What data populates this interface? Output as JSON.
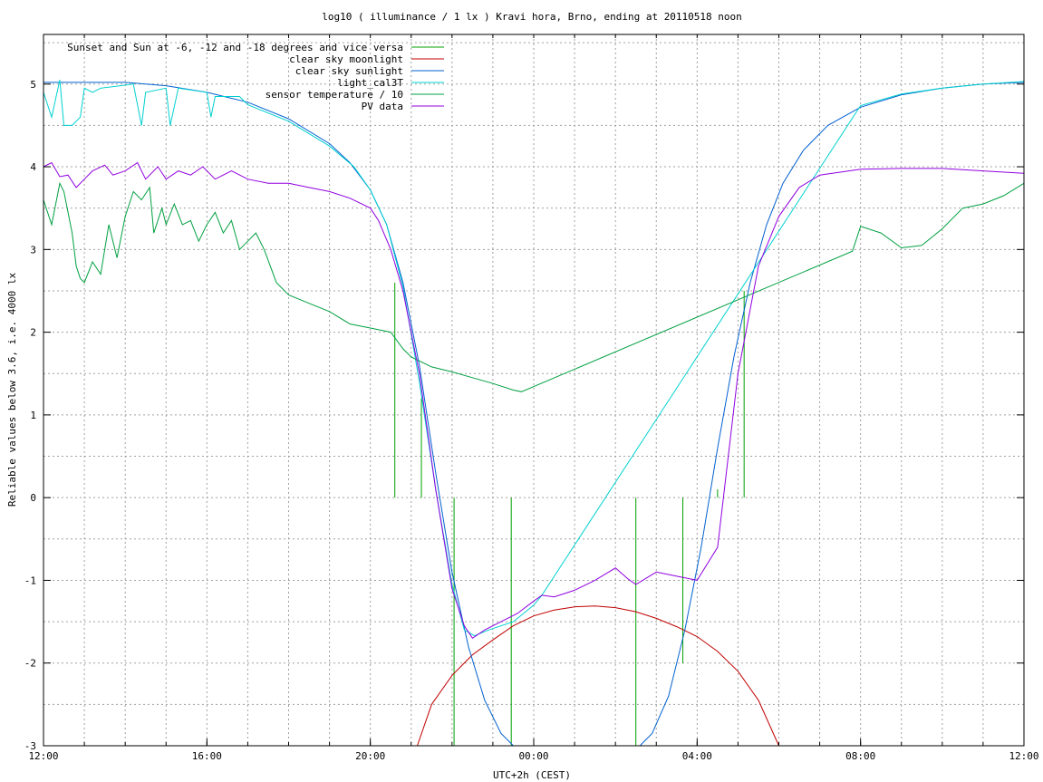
{
  "chart_data": {
    "type": "line",
    "title": "log10 ( illuminance / 1 lx ) Kravi hora, Brno, ending at 20110518 noon",
    "xlabel": "UTC+2h (CEST)",
    "ylabel": "Reliable values below 3.6, i.e. 4000 lx",
    "x_unit": "hours after 12:00 of previous day",
    "xlim": [
      0,
      24
    ],
    "ylim": [
      -3,
      5.6
    ],
    "x_ticks": [
      {
        "v": 0,
        "label": "12:00"
      },
      {
        "v": 4,
        "label": "16:00"
      },
      {
        "v": 8,
        "label": "20:00"
      },
      {
        "v": 12,
        "label": "00:00"
      },
      {
        "v": 16,
        "label": "04:00"
      },
      {
        "v": 20,
        "label": "08:00"
      },
      {
        "v": 24,
        "label": "12:00"
      }
    ],
    "y_ticks": [
      {
        "v": -3,
        "label": "-3"
      },
      {
        "v": -2,
        "label": "-2"
      },
      {
        "v": -1,
        "label": "-1"
      },
      {
        "v": 0,
        "label": "0"
      },
      {
        "v": 1,
        "label": "1"
      },
      {
        "v": 2,
        "label": "2"
      },
      {
        "v": 3,
        "label": "3"
      },
      {
        "v": 4,
        "label": "4"
      },
      {
        "v": 5,
        "label": "5"
      }
    ],
    "grid": true,
    "legend_position": "top-left",
    "series": [
      {
        "name": "Sunset and Sun at -6, -12 and -18 degrees and vice versa",
        "color": "#00a000",
        "style": "impulses",
        "points": [
          [
            8.6,
            2.6
          ],
          [
            9.25,
            1.2
          ],
          [
            10.05,
            -3
          ],
          [
            11.45,
            -3
          ],
          [
            14.5,
            -3
          ],
          [
            15.65,
            -2
          ],
          [
            16.5,
            0.1
          ],
          [
            17.15,
            2.5
          ]
        ]
      },
      {
        "name": "clear sky moonlight",
        "color": "#c00000",
        "values": [
          [
            9.15,
            -3
          ],
          [
            9.5,
            -2.5
          ],
          [
            10.0,
            -2.15
          ],
          [
            10.5,
            -1.9
          ],
          [
            11.0,
            -1.72
          ],
          [
            11.5,
            -1.55
          ],
          [
            12.0,
            -1.43
          ],
          [
            12.5,
            -1.36
          ],
          [
            13.0,
            -1.32
          ],
          [
            13.5,
            -1.31
          ],
          [
            14.0,
            -1.33
          ],
          [
            14.5,
            -1.38
          ],
          [
            15.0,
            -1.46
          ],
          [
            15.5,
            -1.56
          ],
          [
            16.0,
            -1.68
          ],
          [
            16.5,
            -1.86
          ],
          [
            17.0,
            -2.1
          ],
          [
            17.5,
            -2.45
          ],
          [
            18.0,
            -3
          ]
        ]
      },
      {
        "name": "clear sky sunlight",
        "color": "#0060d0",
        "values": [
          [
            0,
            5.02
          ],
          [
            1,
            5.02
          ],
          [
            2,
            5.02
          ],
          [
            3,
            4.98
          ],
          [
            4,
            4.9
          ],
          [
            5,
            4.78
          ],
          [
            6,
            4.58
          ],
          [
            7,
            4.28
          ],
          [
            7.5,
            4.05
          ],
          [
            8,
            3.72
          ],
          [
            8.4,
            3.3
          ],
          [
            8.8,
            2.6
          ],
          [
            9.2,
            1.6
          ],
          [
            9.6,
            0.3
          ],
          [
            10.0,
            -0.9
          ],
          [
            10.4,
            -1.8
          ],
          [
            10.8,
            -2.45
          ],
          [
            11.2,
            -2.85
          ],
          [
            11.5,
            -3.0
          ],
          [
            14.6,
            -3.0
          ],
          [
            14.9,
            -2.85
          ],
          [
            15.3,
            -2.4
          ],
          [
            15.7,
            -1.6
          ],
          [
            16.1,
            -0.6
          ],
          [
            16.5,
            0.6
          ],
          [
            16.9,
            1.7
          ],
          [
            17.3,
            2.6
          ],
          [
            17.7,
            3.3
          ],
          [
            18.1,
            3.8
          ],
          [
            18.6,
            4.2
          ],
          [
            19.2,
            4.5
          ],
          [
            20.0,
            4.72
          ],
          [
            21.0,
            4.87
          ],
          [
            22.0,
            4.95
          ],
          [
            23.0,
            5.0
          ],
          [
            24.0,
            5.02
          ]
        ]
      },
      {
        "name": "light_cal3T",
        "color": "#00d0d0",
        "values": [
          [
            0,
            4.9
          ],
          [
            0.2,
            4.6
          ],
          [
            0.4,
            5.05
          ],
          [
            0.5,
            4.5
          ],
          [
            0.7,
            4.5
          ],
          [
            0.9,
            4.6
          ],
          [
            1.0,
            4.95
          ],
          [
            1.2,
            4.9
          ],
          [
            1.4,
            4.95
          ],
          [
            2.2,
            5.0
          ],
          [
            2.4,
            4.5
          ],
          [
            2.5,
            4.9
          ],
          [
            3.0,
            4.95
          ],
          [
            3.1,
            4.5
          ],
          [
            3.3,
            4.95
          ],
          [
            4.0,
            4.9
          ],
          [
            4.1,
            4.6
          ],
          [
            4.2,
            4.85
          ],
          [
            4.8,
            4.85
          ],
          [
            5.0,
            4.75
          ],
          [
            6.0,
            4.55
          ],
          [
            7.0,
            4.25
          ],
          [
            7.6,
            4.0
          ],
          [
            8.0,
            3.72
          ],
          [
            8.4,
            3.3
          ],
          [
            8.8,
            2.55
          ],
          [
            9.2,
            1.4
          ],
          [
            9.6,
            0.1
          ],
          [
            10.0,
            -1.05
          ],
          [
            10.3,
            -1.6
          ],
          [
            10.55,
            -1.67
          ],
          [
            10.9,
            -1.6
          ],
          [
            11.5,
            -1.5
          ],
          [
            12.0,
            -1.3
          ],
          [
            12.2,
            -1.18
          ],
          [
            20.0,
            4.74
          ],
          [
            21.0,
            4.88
          ],
          [
            22.0,
            4.95
          ],
          [
            23.0,
            5.0
          ],
          [
            24.0,
            5.03
          ]
        ]
      },
      {
        "name": "sensor temperature / 10",
        "color": "#00a040",
        "values": [
          [
            0,
            3.6
          ],
          [
            0.2,
            3.3
          ],
          [
            0.4,
            3.8
          ],
          [
            0.5,
            3.7
          ],
          [
            0.7,
            3.2
          ],
          [
            0.8,
            2.8
          ],
          [
            0.9,
            2.65
          ],
          [
            1.0,
            2.6
          ],
          [
            1.2,
            2.85
          ],
          [
            1.4,
            2.7
          ],
          [
            1.6,
            3.3
          ],
          [
            1.8,
            2.9
          ],
          [
            2.0,
            3.4
          ],
          [
            2.2,
            3.7
          ],
          [
            2.4,
            3.6
          ],
          [
            2.6,
            3.75
          ],
          [
            2.7,
            3.2
          ],
          [
            2.9,
            3.5
          ],
          [
            3.0,
            3.3
          ],
          [
            3.2,
            3.55
          ],
          [
            3.4,
            3.3
          ],
          [
            3.6,
            3.35
          ],
          [
            3.8,
            3.1
          ],
          [
            4.0,
            3.3
          ],
          [
            4.2,
            3.45
          ],
          [
            4.4,
            3.2
          ],
          [
            4.6,
            3.35
          ],
          [
            4.8,
            3.0
          ],
          [
            5.0,
            3.1
          ],
          [
            5.2,
            3.2
          ],
          [
            5.4,
            3.0
          ],
          [
            5.7,
            2.6
          ],
          [
            6.0,
            2.45
          ],
          [
            6.5,
            2.35
          ],
          [
            7.0,
            2.25
          ],
          [
            7.5,
            2.1
          ],
          [
            8.0,
            2.05
          ],
          [
            8.5,
            2.0
          ],
          [
            8.8,
            1.8
          ],
          [
            9.0,
            1.7
          ],
          [
            9.5,
            1.58
          ],
          [
            10.0,
            1.52
          ],
          [
            10.5,
            1.45
          ],
          [
            11.0,
            1.38
          ],
          [
            11.5,
            1.3
          ],
          [
            11.7,
            1.28
          ],
          [
            19.8,
            2.98
          ],
          [
            20.0,
            3.28
          ],
          [
            20.5,
            3.2
          ],
          [
            21.0,
            3.02
          ],
          [
            21.5,
            3.05
          ],
          [
            22.0,
            3.25
          ],
          [
            22.5,
            3.5
          ],
          [
            23.0,
            3.55
          ],
          [
            23.5,
            3.65
          ],
          [
            24.0,
            3.8
          ]
        ]
      },
      {
        "name": "PV data",
        "color": "#9000e0",
        "values": [
          [
            0,
            4.0
          ],
          [
            0.2,
            4.05
          ],
          [
            0.4,
            3.88
          ],
          [
            0.6,
            3.9
          ],
          [
            0.8,
            3.75
          ],
          [
            1.0,
            3.85
          ],
          [
            1.2,
            3.95
          ],
          [
            1.5,
            4.02
          ],
          [
            1.7,
            3.9
          ],
          [
            2.0,
            3.95
          ],
          [
            2.3,
            4.05
          ],
          [
            2.5,
            3.85
          ],
          [
            2.8,
            4.0
          ],
          [
            3.0,
            3.85
          ],
          [
            3.3,
            3.95
          ],
          [
            3.6,
            3.9
          ],
          [
            3.9,
            4.0
          ],
          [
            4.2,
            3.85
          ],
          [
            4.6,
            3.95
          ],
          [
            5.0,
            3.85
          ],
          [
            5.5,
            3.8
          ],
          [
            6.0,
            3.8
          ],
          [
            6.5,
            3.75
          ],
          [
            7.0,
            3.7
          ],
          [
            7.5,
            3.62
          ],
          [
            8.0,
            3.5
          ],
          [
            8.2,
            3.35
          ],
          [
            8.5,
            3.0
          ],
          [
            8.8,
            2.5
          ],
          [
            9.2,
            1.5
          ],
          [
            9.6,
            0.1
          ],
          [
            10.0,
            -1.1
          ],
          [
            10.3,
            -1.55
          ],
          [
            10.5,
            -1.7
          ],
          [
            10.8,
            -1.6
          ],
          [
            11.2,
            -1.5
          ],
          [
            11.6,
            -1.4
          ],
          [
            12.0,
            -1.25
          ],
          [
            12.2,
            -1.18
          ],
          [
            12.5,
            -1.2
          ],
          [
            13.0,
            -1.12
          ],
          [
            13.5,
            -1.0
          ],
          [
            14.0,
            -0.85
          ],
          [
            14.3,
            -0.98
          ],
          [
            14.5,
            -1.05
          ],
          [
            15.0,
            -0.9
          ],
          [
            15.5,
            -0.95
          ],
          [
            16.0,
            -1.0
          ],
          [
            16.5,
            -0.6
          ],
          [
            17.0,
            1.5
          ],
          [
            17.5,
            2.8
          ],
          [
            18.0,
            3.4
          ],
          [
            18.5,
            3.75
          ],
          [
            19.0,
            3.9
          ],
          [
            20.0,
            3.97
          ],
          [
            21.0,
            3.98
          ],
          [
            22.0,
            3.98
          ],
          [
            23.0,
            3.95
          ],
          [
            24.0,
            3.92
          ]
        ]
      }
    ]
  }
}
